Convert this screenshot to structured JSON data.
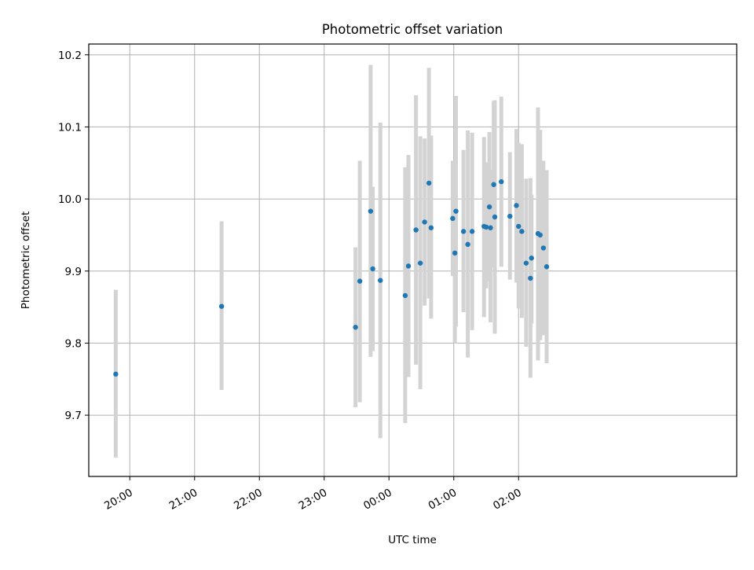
{
  "chart_data": {
    "type": "scatter",
    "title": "Photometric offset variation",
    "xlabel": "UTC time",
    "ylabel": "Photometric offset",
    "x_range_minutes": [
      1162,
      1762
    ],
    "ylim": [
      9.615,
      10.215
    ],
    "grid": true,
    "legend": "none",
    "x_ticks": [
      {
        "label": "20:00",
        "minutes": 1200
      },
      {
        "label": "21:00",
        "minutes": 1260
      },
      {
        "label": "22:00",
        "minutes": 1320
      },
      {
        "label": "23:00",
        "minutes": 1380
      },
      {
        "label": "00:00",
        "minutes": 1440
      },
      {
        "label": "01:00",
        "minutes": 1500
      },
      {
        "label": "02:00",
        "minutes": 1560
      }
    ],
    "y_ticks": [
      {
        "label": "9.7",
        "value": 9.7
      },
      {
        "label": "9.8",
        "value": 9.8
      },
      {
        "label": "9.9",
        "value": 9.9
      },
      {
        "label": "10.0",
        "value": 10.0
      },
      {
        "label": "10.1",
        "value": 10.1
      },
      {
        "label": "10.2",
        "value": 10.2
      }
    ],
    "colors": {
      "point": "#1f77b4",
      "errorbar": "#d3d3d3",
      "grid": "#b0b0b0"
    },
    "points": [
      {
        "t": "19:47",
        "y": 9.757,
        "lo": 9.641,
        "hi": 9.874
      },
      {
        "t": "21:25",
        "y": 9.851,
        "lo": 9.735,
        "hi": 9.969
      },
      {
        "t": "23:29",
        "y": 9.822,
        "lo": 9.711,
        "hi": 9.933
      },
      {
        "t": "23:33",
        "y": 9.886,
        "lo": 9.718,
        "hi": 10.053
      },
      {
        "t": "23:43",
        "y": 9.983,
        "lo": 9.781,
        "hi": 10.186
      },
      {
        "t": "23:45",
        "y": 9.903,
        "lo": 9.789,
        "hi": 10.017
      },
      {
        "t": "23:52",
        "y": 9.887,
        "lo": 9.668,
        "hi": 10.106
      },
      {
        "t": "00:15",
        "y": 9.866,
        "lo": 9.689,
        "hi": 10.044
      },
      {
        "t": "00:18",
        "y": 9.907,
        "lo": 9.753,
        "hi": 10.061
      },
      {
        "t": "00:25",
        "y": 9.957,
        "lo": 9.77,
        "hi": 10.144
      },
      {
        "t": "00:29",
        "y": 9.911,
        "lo": 9.736,
        "hi": 10.087
      },
      {
        "t": "00:33",
        "y": 9.968,
        "lo": 9.852,
        "hi": 10.084
      },
      {
        "t": "00:37",
        "y": 10.022,
        "lo": 9.862,
        "hi": 10.182
      },
      {
        "t": "00:39",
        "y": 9.96,
        "lo": 9.834,
        "hi": 10.088
      },
      {
        "t": "00:59",
        "y": 9.973,
        "lo": 9.893,
        "hi": 10.053
      },
      {
        "t": "01:01",
        "y": 9.925,
        "lo": 9.8,
        "hi": 10.036
      },
      {
        "t": "01:02",
        "y": 9.983,
        "lo": 9.823,
        "hi": 10.143
      },
      {
        "t": "01:09",
        "y": 9.955,
        "lo": 9.843,
        "hi": 10.068
      },
      {
        "t": "01:13",
        "y": 9.937,
        "lo": 9.78,
        "hi": 10.095
      },
      {
        "t": "01:17",
        "y": 9.955,
        "lo": 9.818,
        "hi": 10.092
      },
      {
        "t": "01:28",
        "y": 9.962,
        "lo": 9.836,
        "hi": 10.086
      },
      {
        "t": "01:30",
        "y": 9.961,
        "lo": 9.876,
        "hi": 10.051
      },
      {
        "t": "01:33",
        "y": 9.989,
        "lo": 9.885,
        "hi": 10.093
      },
      {
        "t": "01:34",
        "y": 9.96,
        "lo": 9.829,
        "hi": 10.04
      },
      {
        "t": "01:37",
        "y": 10.02,
        "lo": 9.905,
        "hi": 10.136
      },
      {
        "t": "01:38",
        "y": 9.975,
        "lo": 9.813,
        "hi": 10.137
      },
      {
        "t": "01:44",
        "y": 10.024,
        "lo": 9.906,
        "hi": 10.142
      },
      {
        "t": "01:52",
        "y": 9.976,
        "lo": 9.888,
        "hi": 10.065
      },
      {
        "t": "01:58",
        "y": 9.991,
        "lo": 9.884,
        "hi": 10.097
      },
      {
        "t": "02:00",
        "y": 9.962,
        "lo": 9.848,
        "hi": 10.078
      },
      {
        "t": "02:03",
        "y": 9.955,
        "lo": 9.835,
        "hi": 10.076
      },
      {
        "t": "02:07",
        "y": 9.911,
        "lo": 9.795,
        "hi": 10.028
      },
      {
        "t": "02:11",
        "y": 9.89,
        "lo": 9.752,
        "hi": 10.029
      },
      {
        "t": "02:12",
        "y": 9.918,
        "lo": 9.827,
        "hi": 10.006
      },
      {
        "t": "02:18",
        "y": 9.952,
        "lo": 9.776,
        "hi": 10.127
      },
      {
        "t": "02:20",
        "y": 9.95,
        "lo": 9.804,
        "hi": 10.096
      },
      {
        "t": "02:23",
        "y": 9.932,
        "lo": 9.811,
        "hi": 10.053
      },
      {
        "t": "02:26",
        "y": 9.906,
        "lo": 9.772,
        "hi": 10.04
      }
    ]
  }
}
